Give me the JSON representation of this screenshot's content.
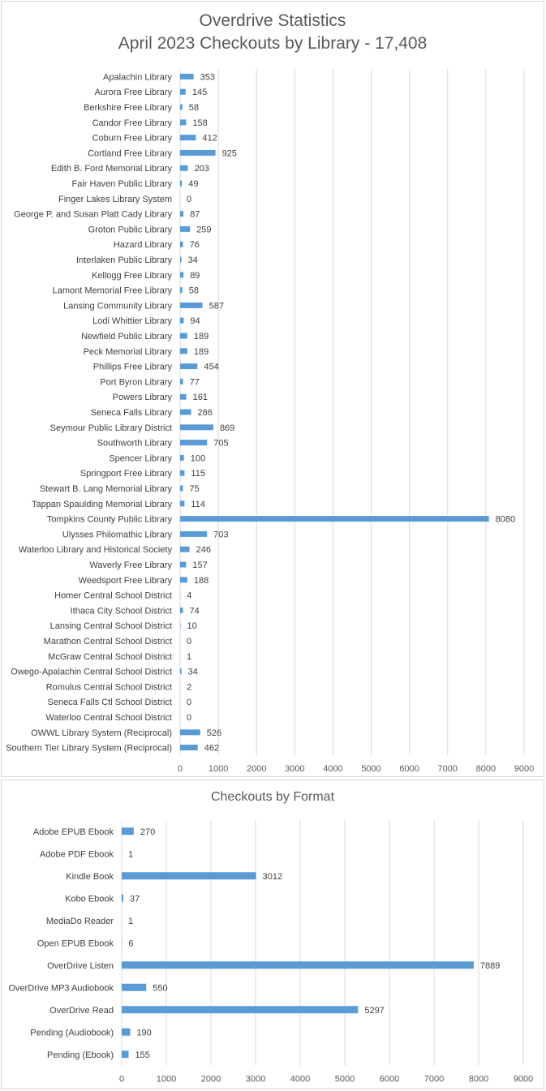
{
  "chart_data": [
    {
      "type": "bar",
      "orientation": "horizontal",
      "title": "Overdrive Statistics",
      "subtitle": "April 2023 Checkouts by Library - 17,408",
      "categories": [
        "Apalachin Library",
        "Aurora Free Library",
        "Berkshire Free Library",
        "Candor Free Library",
        "Coburn Free Library",
        "Cortland Free Library",
        "Edith B. Ford Memorial Library",
        "Fair Haven Public Library",
        "Finger Lakes Library System",
        "George P. and Susan Platt Cady Library",
        "Groton Public Library",
        "Hazard Library",
        "Interlaken Public Library",
        "Kellogg Free Library",
        "Lamont Memorial Free Library",
        "Lansing Community Library",
        "Lodi Whittier Library",
        "Newfield Public Library",
        "Peck Memorial Library",
        "Phillips Free Library",
        "Port Byron Library",
        "Powers Library",
        "Seneca Falls Library",
        "Seymour Public Library District",
        "Southworth Library",
        "Spencer Library",
        "Springport Free Library",
        "Stewart B. Lang Memorial Library",
        "Tappan Spaulding Memorial Library",
        "Tompkins County Public Library",
        "Ulysses Philomathic Library",
        "Waterloo Library and Historical Society",
        "Waverly Free Library",
        "Weedsport Free Library",
        "Homer Central School District",
        "Ithaca City School District",
        "Lansing Central School District",
        "Marathon Central School District",
        "McGraw Central School District",
        "Owego-Apalachin Central School District",
        "Romulus Central School District",
        "Seneca Falls Ctl School District",
        "Waterloo Central School District",
        "OWWL Library System (Reciprocal)",
        "Southern Tier Library System (Reciprocal)"
      ],
      "values": [
        353,
        145,
        58,
        158,
        412,
        925,
        203,
        49,
        0,
        87,
        259,
        76,
        34,
        89,
        58,
        587,
        94,
        189,
        189,
        454,
        77,
        161,
        286,
        869,
        705,
        100,
        115,
        75,
        114,
        8080,
        703,
        246,
        157,
        188,
        4,
        74,
        10,
        0,
        1,
        34,
        2,
        0,
        0,
        526,
        462
      ],
      "xlim": [
        0,
        9000
      ],
      "xticks": [
        0,
        1000,
        2000,
        3000,
        4000,
        5000,
        6000,
        7000,
        8000,
        9000
      ],
      "grid": true,
      "bar_color": "#5b9bd5"
    },
    {
      "type": "bar",
      "orientation": "horizontal",
      "title": "Checkouts by Format",
      "categories": [
        "Adobe EPUB Ebook",
        "Adobe PDF Ebook",
        "Kindle Book",
        "Kobo Ebook",
        "MediaDo Reader",
        "Open EPUB Ebook",
        "OverDrive Listen",
        "OverDrive MP3 Audiobook",
        "OverDrive Read",
        "Pending (Audiobook)",
        "Pending (Ebook)"
      ],
      "values": [
        270,
        1,
        3012,
        37,
        1,
        6,
        7889,
        550,
        5297,
        190,
        155
      ],
      "xlim": [
        0,
        9000
      ],
      "xticks": [
        0,
        1000,
        2000,
        3000,
        4000,
        5000,
        6000,
        7000,
        8000,
        9000
      ],
      "grid": true,
      "bar_color": "#5b9bd5"
    }
  ]
}
